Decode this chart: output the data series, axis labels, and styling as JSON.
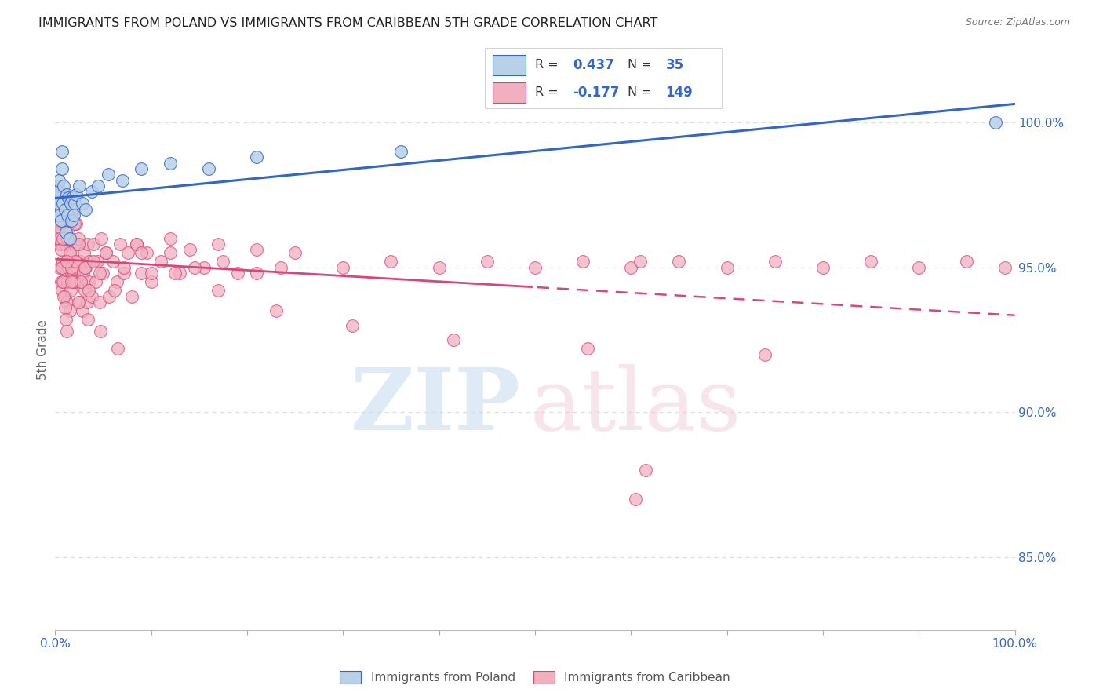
{
  "title": "IMMIGRANTS FROM POLAND VS IMMIGRANTS FROM CARIBBEAN 5TH GRADE CORRELATION CHART",
  "source": "Source: ZipAtlas.com",
  "ylabel": "5th Grade",
  "ylabel_right_labels": [
    "100.0%",
    "95.0%",
    "90.0%",
    "85.0%"
  ],
  "ylabel_right_values": [
    1.0,
    0.95,
    0.9,
    0.85
  ],
  "xmin": 0.0,
  "xmax": 1.0,
  "ymin": 0.825,
  "ymax": 1.018,
  "color_poland": "#b8d0e8",
  "color_caribbean": "#f0b0c0",
  "color_poland_line": "#3366cc",
  "color_caribbean_line": "#dd4477",
  "color_legend_text_blue": "#3366cc",
  "color_axis_label": "#666666",
  "color_grid": "#dddddd",
  "poland_x": [
    0.001,
    0.002,
    0.003,
    0.004,
    0.005,
    0.006,
    0.007,
    0.007,
    0.008,
    0.009,
    0.01,
    0.011,
    0.012,
    0.013,
    0.014,
    0.015,
    0.016,
    0.017,
    0.018,
    0.019,
    0.02,
    0.022,
    0.025,
    0.028,
    0.032,
    0.038,
    0.045,
    0.055,
    0.07,
    0.09,
    0.12,
    0.16,
    0.21,
    0.36,
    0.98
  ],
  "poland_y": [
    0.974,
    0.976,
    0.972,
    0.98,
    0.968,
    0.966,
    0.984,
    0.99,
    0.972,
    0.978,
    0.97,
    0.962,
    0.975,
    0.968,
    0.974,
    0.96,
    0.972,
    0.966,
    0.974,
    0.968,
    0.972,
    0.975,
    0.978,
    0.972,
    0.97,
    0.976,
    0.978,
    0.982,
    0.98,
    0.984,
    0.986,
    0.984,
    0.988,
    0.99,
    1.0
  ],
  "caribbean_x": [
    0.001,
    0.002,
    0.002,
    0.003,
    0.003,
    0.004,
    0.004,
    0.005,
    0.005,
    0.006,
    0.006,
    0.007,
    0.007,
    0.008,
    0.008,
    0.009,
    0.009,
    0.01,
    0.01,
    0.011,
    0.011,
    0.012,
    0.012,
    0.013,
    0.013,
    0.014,
    0.014,
    0.015,
    0.015,
    0.016,
    0.016,
    0.017,
    0.017,
    0.018,
    0.019,
    0.02,
    0.021,
    0.022,
    0.023,
    0.024,
    0.025,
    0.026,
    0.027,
    0.028,
    0.029,
    0.03,
    0.031,
    0.032,
    0.033,
    0.034,
    0.035,
    0.036,
    0.038,
    0.04,
    0.042,
    0.044,
    0.046,
    0.048,
    0.05,
    0.053,
    0.056,
    0.06,
    0.064,
    0.068,
    0.072,
    0.076,
    0.08,
    0.085,
    0.09,
    0.095,
    0.1,
    0.11,
    0.12,
    0.13,
    0.14,
    0.155,
    0.17,
    0.19,
    0.21,
    0.235,
    0.001,
    0.002,
    0.003,
    0.004,
    0.005,
    0.006,
    0.007,
    0.008,
    0.009,
    0.01,
    0.011,
    0.012,
    0.013,
    0.015,
    0.017,
    0.019,
    0.021,
    0.024,
    0.027,
    0.031,
    0.035,
    0.04,
    0.046,
    0.053,
    0.062,
    0.072,
    0.085,
    0.1,
    0.12,
    0.145,
    0.175,
    0.21,
    0.25,
    0.3,
    0.35,
    0.4,
    0.45,
    0.5,
    0.55,
    0.6,
    0.65,
    0.7,
    0.75,
    0.8,
    0.85,
    0.9,
    0.95,
    0.01,
    0.02,
    0.61,
    0.003,
    0.005,
    0.008,
    0.012,
    0.017,
    0.024,
    0.034,
    0.047,
    0.065,
    0.09,
    0.125,
    0.17,
    0.23,
    0.31,
    0.415,
    0.555,
    0.74,
    0.99,
    0.605,
    0.615
  ],
  "caribbean_y": [
    0.978,
    0.97,
    0.976,
    0.965,
    0.972,
    0.958,
    0.966,
    0.95,
    0.962,
    0.945,
    0.958,
    0.942,
    0.968,
    0.952,
    0.972,
    0.945,
    0.965,
    0.94,
    0.958,
    0.948,
    0.965,
    0.938,
    0.96,
    0.945,
    0.968,
    0.95,
    0.962,
    0.935,
    0.958,
    0.942,
    0.968,
    0.948,
    0.97,
    0.955,
    0.948,
    0.958,
    0.945,
    0.965,
    0.95,
    0.96,
    0.938,
    0.952,
    0.945,
    0.935,
    0.948,
    0.955,
    0.942,
    0.95,
    0.938,
    0.958,
    0.945,
    0.952,
    0.94,
    0.958,
    0.945,
    0.952,
    0.938,
    0.96,
    0.948,
    0.955,
    0.94,
    0.952,
    0.945,
    0.958,
    0.948,
    0.955,
    0.94,
    0.958,
    0.948,
    0.955,
    0.945,
    0.952,
    0.96,
    0.948,
    0.956,
    0.95,
    0.958,
    0.948,
    0.956,
    0.95,
    0.972,
    0.968,
    0.966,
    0.964,
    0.96,
    0.956,
    0.95,
    0.945,
    0.94,
    0.936,
    0.932,
    0.928,
    0.96,
    0.955,
    0.95,
    0.945,
    0.952,
    0.958,
    0.945,
    0.95,
    0.942,
    0.952,
    0.948,
    0.955,
    0.942,
    0.95,
    0.958,
    0.948,
    0.955,
    0.95,
    0.952,
    0.948,
    0.955,
    0.95,
    0.952,
    0.95,
    0.952,
    0.95,
    0.952,
    0.95,
    0.952,
    0.95,
    0.952,
    0.95,
    0.952,
    0.95,
    0.952,
    0.975,
    0.965,
    0.952,
    0.978,
    0.968,
    0.96,
    0.952,
    0.945,
    0.938,
    0.932,
    0.928,
    0.922,
    0.955,
    0.948,
    0.942,
    0.935,
    0.93,
    0.925,
    0.922,
    0.92,
    0.95,
    0.87,
    0.88
  ]
}
